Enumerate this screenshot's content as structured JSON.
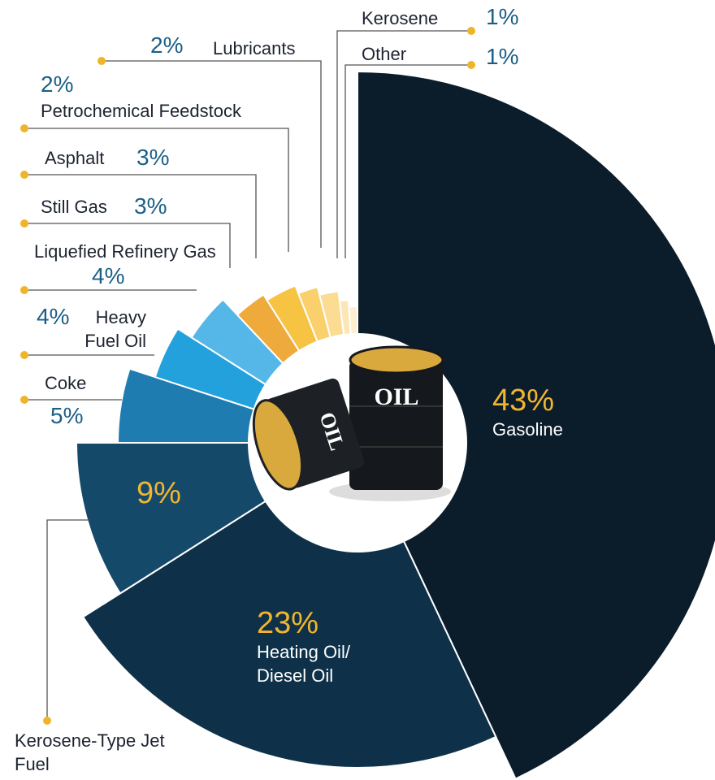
{
  "chart_data": {
    "type": "pie",
    "categories": [
      "Gasoline",
      "Heating Oil/ Diesel Oil",
      "Kerosene-Type Jet Fuel",
      "Coke",
      "Heavy Fuel Oil",
      "Liquefied Refinery Gas",
      "Still Gas",
      "Asphalt",
      "Petrochemical Feedstock",
      "Lubricants",
      "Kerosene",
      "Other"
    ],
    "values": [
      43,
      23,
      9,
      5,
      4,
      4,
      3,
      3,
      2,
      2,
      1,
      1
    ],
    "value_labels": [
      "43%",
      "23%",
      "9%",
      "5%",
      "4%",
      "4%",
      "3%",
      "3%",
      "2%",
      "2%",
      "1%",
      "1%"
    ],
    "colors": [
      "#0b1c2a",
      "#0e3149",
      "#15496a",
      "#1f7cb1",
      "#23a1dd",
      "#55b7e7",
      "#efaa3c",
      "#f6c343",
      "#f9d06c",
      "#fbdc92",
      "#fce6b5",
      "#fdf0d2"
    ]
  },
  "illustration": {
    "barrel_label": "OIL"
  }
}
